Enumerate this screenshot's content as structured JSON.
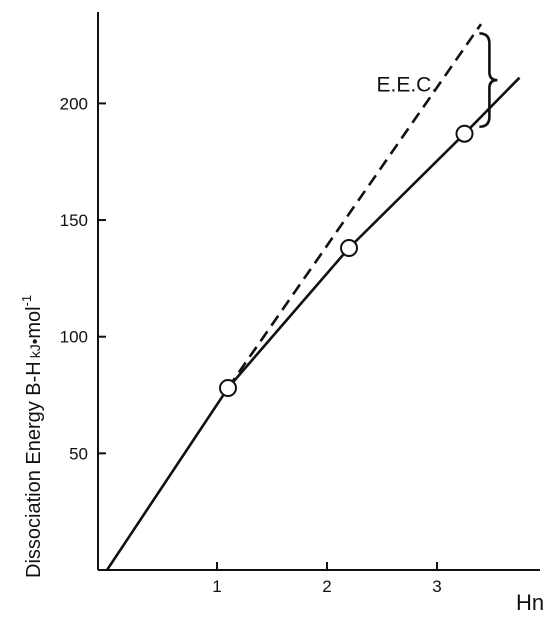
{
  "chart_data": {
    "type": "line",
    "xlabel": "Hn",
    "ylabel": "Dissociation Energy B-H",
    "ylabel_unit_kj": "kJ",
    "ylabel_unit_mol": "mol",
    "ylabel_unit_exp": "-1",
    "xlim": [
      0,
      3.8
    ],
    "ylim": [
      0,
      235
    ],
    "x_ticks": [
      {
        "value": 1,
        "label": "1"
      },
      {
        "value": 2,
        "label": "2"
      },
      {
        "value": 3,
        "label": "3"
      }
    ],
    "y_ticks": [
      {
        "value": 50,
        "label": "50"
      },
      {
        "value": 100,
        "label": "100"
      },
      {
        "value": 150,
        "label": "150"
      },
      {
        "value": 200,
        "label": "200"
      }
    ],
    "grid": false,
    "legend": "none",
    "series": [
      {
        "style": "solid",
        "x": [
          0,
          1.1,
          2.2,
          3.25,
          3.75
        ],
        "y": [
          0,
          78,
          138,
          187,
          211
        ],
        "markers": [
          {
            "x": 1.1,
            "y": 78
          },
          {
            "x": 2.2,
            "y": 138
          },
          {
            "x": 3.25,
            "y": 187
          }
        ]
      },
      {
        "style": "dashed",
        "x": [
          1.1,
          3.4
        ],
        "y": [
          78,
          234
        ]
      }
    ],
    "annotations": [
      {
        "text": "E.E.C.",
        "x": 2.45,
        "y": 205,
        "anchor": "start"
      }
    ],
    "brace": {
      "x": 3.44,
      "y_top": 230,
      "y_bottom": 190
    }
  },
  "colors": {
    "line": "#111111",
    "marker_fill": "#ffffff",
    "background": "#ffffff"
  }
}
